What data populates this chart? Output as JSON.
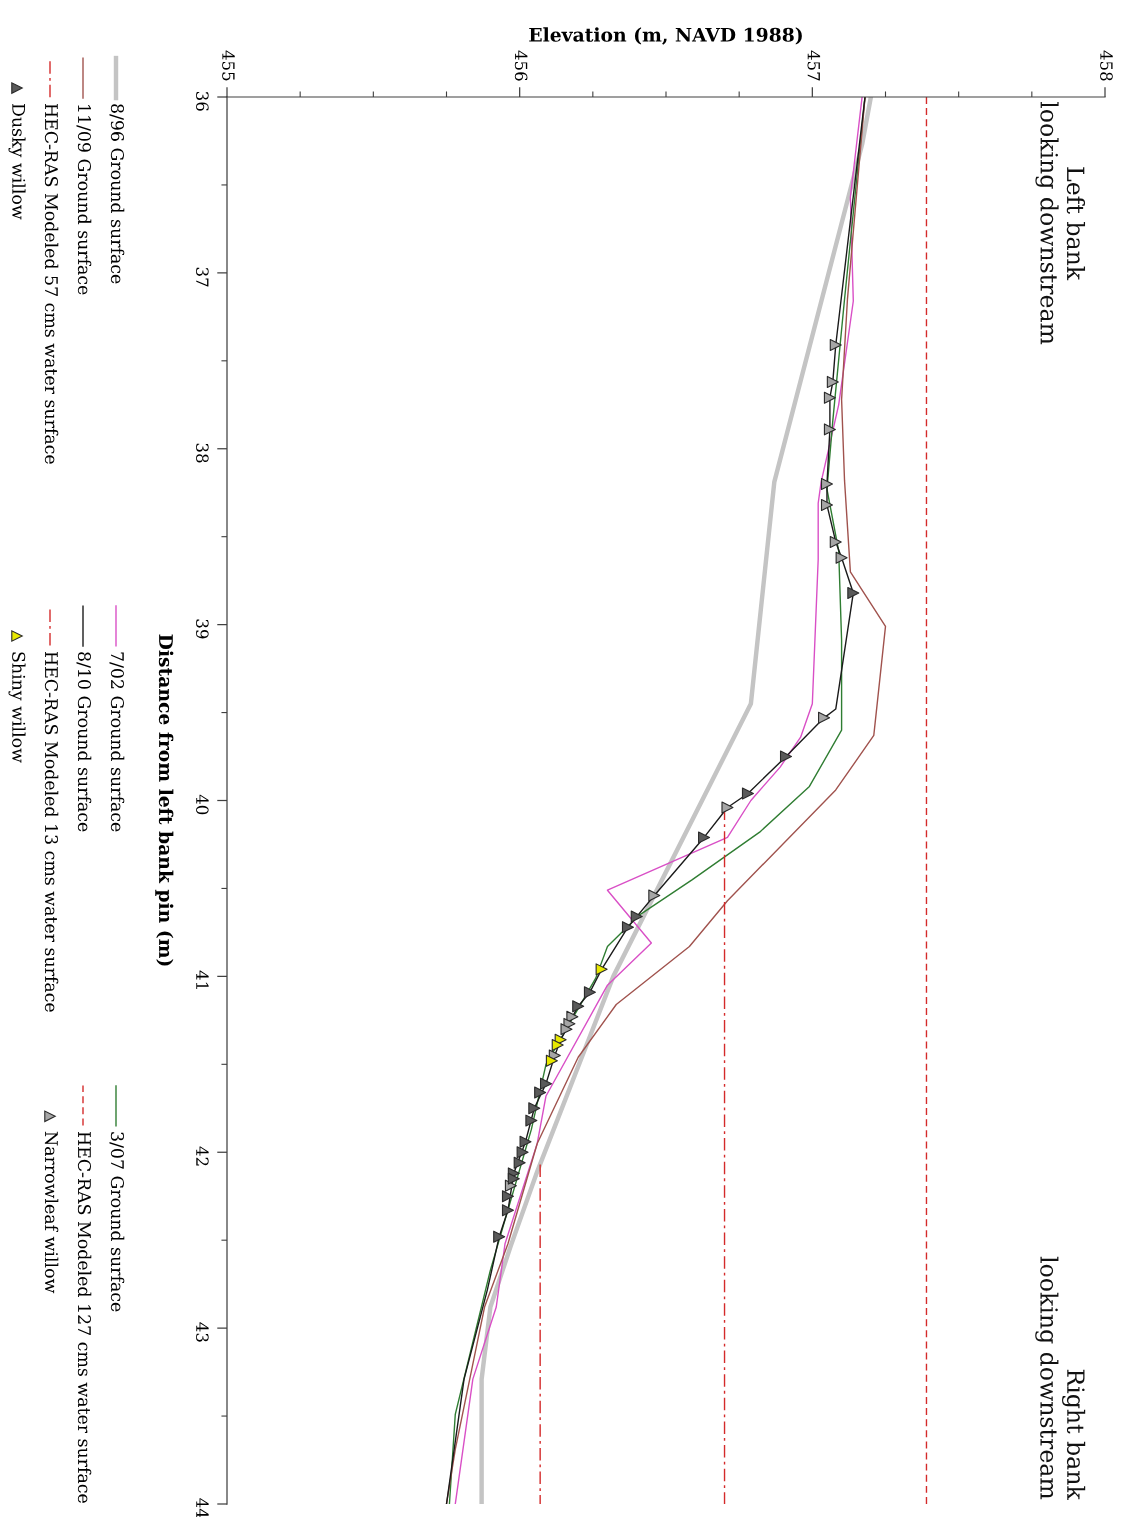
{
  "chart_data": {
    "type": "line",
    "xlabel": "Elevation (m, NAVD 1988)",
    "ylabel": "Distance from left bank pin (m)",
    "xlim": [
      455,
      458
    ],
    "xticks": [
      455,
      {
        "value": 455.25,
        "label": null
      },
      {
        "value": 455.5,
        "label": null
      },
      {
        "value": 455.75,
        "label": null
      },
      456,
      {
        "value": 456.25,
        "label": null
      },
      {
        "value": 456.5,
        "label": null
      },
      {
        "value": 456.75,
        "label": null
      },
      457,
      {
        "value": 457.25,
        "label": null
      },
      {
        "value": 457.5,
        "label": null
      },
      {
        "value": 457.75,
        "label": null
      },
      458
    ],
    "ylim": [
      44,
      36
    ],
    "yticks": [
      36,
      {
        "value": 36.5,
        "label": null
      },
      37,
      {
        "value": 37.5,
        "label": null
      },
      38,
      {
        "value": 38.5,
        "label": null
      },
      39,
      {
        "value": 39.5,
        "label": null
      },
      40,
      {
        "value": 40.5,
        "label": null
      },
      41,
      {
        "value": 41.5,
        "label": null
      },
      42,
      {
        "value": 42.5,
        "label": null
      },
      43,
      {
        "value": 43.5,
        "label": null
      },
      44
    ],
    "annotations": [
      "Left bank\nlooking downstream",
      "Right bank\nlooking downstream"
    ],
    "legend": "left",
    "series": [
      {
        "name": "8/96 Ground surface",
        "color": "#c4c4c4",
        "x": [
          457.2,
          457.17,
          456.87,
          456.79,
          456.32,
          456.06,
          455.97,
          455.9,
          455.87,
          455.87
        ],
        "values": [
          36.0,
          36.27,
          38.19,
          39.45,
          41.0,
          42.11,
          42.53,
          42.88,
          43.29,
          44.0
        ]
      },
      {
        "name": "7/02 Ground surface",
        "color": "#d94fc6",
        "x": [
          457.17,
          457.13,
          457.14,
          457.09,
          457.03,
          457.02,
          457.02,
          457.0,
          456.96,
          456.89,
          456.79,
          456.71,
          456.3,
          456.45,
          456.3,
          456.09,
          456.06,
          455.95,
          455.92,
          455.84,
          455.78
        ],
        "values": [
          36.0,
          36.57,
          37.16,
          37.75,
          38.19,
          38.31,
          38.63,
          39.45,
          39.64,
          39.81,
          40.0,
          40.21,
          40.51,
          40.81,
          41.05,
          41.68,
          41.95,
          42.52,
          42.88,
          43.29,
          44.0
        ]
      },
      {
        "name": "3/07 Ground surface",
        "color": "#2f7d32",
        "x": [
          457.18,
          457.11,
          457.07,
          457.05,
          457.09,
          457.1,
          457.1,
          456.99,
          456.82,
          456.59,
          456.41,
          456.3,
          456.26,
          456.09,
          456.04,
          455.9,
          455.78,
          455.76
        ],
        "values": [
          36.0,
          37.15,
          37.84,
          38.23,
          38.58,
          39.09,
          39.6,
          39.92,
          40.18,
          40.45,
          40.65,
          40.83,
          41.01,
          41.5,
          41.87,
          42.67,
          43.49,
          44.0
        ]
      },
      {
        "name": "11/09 Ground surface",
        "color": "#a0524d",
        "x": [
          457.18,
          457.12,
          457.1,
          457.11,
          457.13,
          457.25,
          457.21,
          457.08,
          456.71,
          456.58,
          456.33,
          456.2,
          456.06,
          455.96,
          455.88,
          455.78,
          455.75
        ],
        "values": [
          36.0,
          37.15,
          37.72,
          38.18,
          38.7,
          39.01,
          39.63,
          39.94,
          40.57,
          40.83,
          41.16,
          41.46,
          41.95,
          42.52,
          42.88,
          43.69,
          44.0
        ]
      },
      {
        "name": "8/10 Ground surface",
        "color": "#1a1a1a",
        "x": [
          457.18,
          457.08,
          457.07,
          457.06,
          457.06,
          457.05,
          457.05,
          457.08,
          457.1,
          457.14,
          457.08,
          457.04,
          456.91,
          456.78,
          456.71,
          456.63,
          456.46,
          456.4,
          456.37,
          456.28,
          456.24,
          456.2,
          456.18,
          456.16,
          456.14,
          456.12,
          456.09,
          456.05,
          456.02,
          455.98,
          455.96,
          455.93,
          455.89,
          455.81,
          455.75
        ],
        "values": [
          36.0,
          37.41,
          37.62,
          37.71,
          37.89,
          38.2,
          38.32,
          38.53,
          38.62,
          38.82,
          39.48,
          39.53,
          39.75,
          39.96,
          40.04,
          40.21,
          40.54,
          40.66,
          40.72,
          40.96,
          41.09,
          41.17,
          41.23,
          41.3,
          41.36,
          41.45,
          41.61,
          41.75,
          41.94,
          42.12,
          42.33,
          42.48,
          42.78,
          43.29,
          44.0
        ]
      },
      {
        "name": "HEC-RAS Modeled 127 cms water surface",
        "color": "#d42a2a",
        "line_style": "dashed",
        "x": [
          457.39,
          457.39
        ],
        "values": [
          36.0,
          44.0
        ]
      },
      {
        "name": "HEC-RAS Modeled 57 cms water surface",
        "color": "#d42a2a",
        "line_style": "dashdot",
        "x": [
          456.7,
          456.7
        ],
        "values": [
          40.04,
          44.0
        ]
      },
      {
        "name": "HEC-RAS Modeled 13 cms water surface",
        "color": "#d42a2a",
        "line_style": "dashdot",
        "x": [
          456.07,
          456.07
        ],
        "values": [
          42.07,
          44.0
        ]
      },
      {
        "name": "Narrowleaf willow",
        "type": "scatter",
        "color": "#a6a6a6",
        "marker": "triangle",
        "x": [
          457.08,
          457.07,
          457.06,
          457.06,
          457.05,
          457.05,
          457.08,
          457.1,
          457.04,
          456.71,
          456.46,
          456.18,
          456.17,
          456.16,
          456.12,
          455.97
        ],
        "values": [
          37.41,
          37.62,
          37.71,
          37.89,
          38.2,
          38.32,
          38.53,
          38.62,
          39.53,
          40.04,
          40.54,
          41.23,
          41.27,
          41.3,
          41.45,
          42.19
        ]
      },
      {
        "name": "Dusky willow",
        "type": "scatter",
        "color": "#5a5a5a",
        "marker": "triangle",
        "x": [
          457.14,
          456.91,
          456.78,
          456.63,
          456.4,
          456.37,
          456.24,
          456.2,
          456.09,
          456.07,
          456.05,
          456.04,
          456.02,
          456.01,
          456.0,
          455.98,
          455.98,
          455.96,
          455.96,
          455.93
        ],
        "values": [
          38.82,
          39.75,
          39.96,
          40.21,
          40.66,
          40.72,
          41.09,
          41.17,
          41.61,
          41.66,
          41.75,
          41.82,
          41.94,
          42.0,
          42.06,
          42.12,
          42.15,
          42.25,
          42.33,
          42.48
        ]
      },
      {
        "name": "Shiny willow",
        "type": "scatter",
        "color": "#e8e800",
        "marker": "triangle",
        "x": [
          456.28,
          456.14,
          456.13,
          456.11
        ],
        "values": [
          40.96,
          41.36,
          41.39,
          41.48
        ]
      }
    ]
  }
}
